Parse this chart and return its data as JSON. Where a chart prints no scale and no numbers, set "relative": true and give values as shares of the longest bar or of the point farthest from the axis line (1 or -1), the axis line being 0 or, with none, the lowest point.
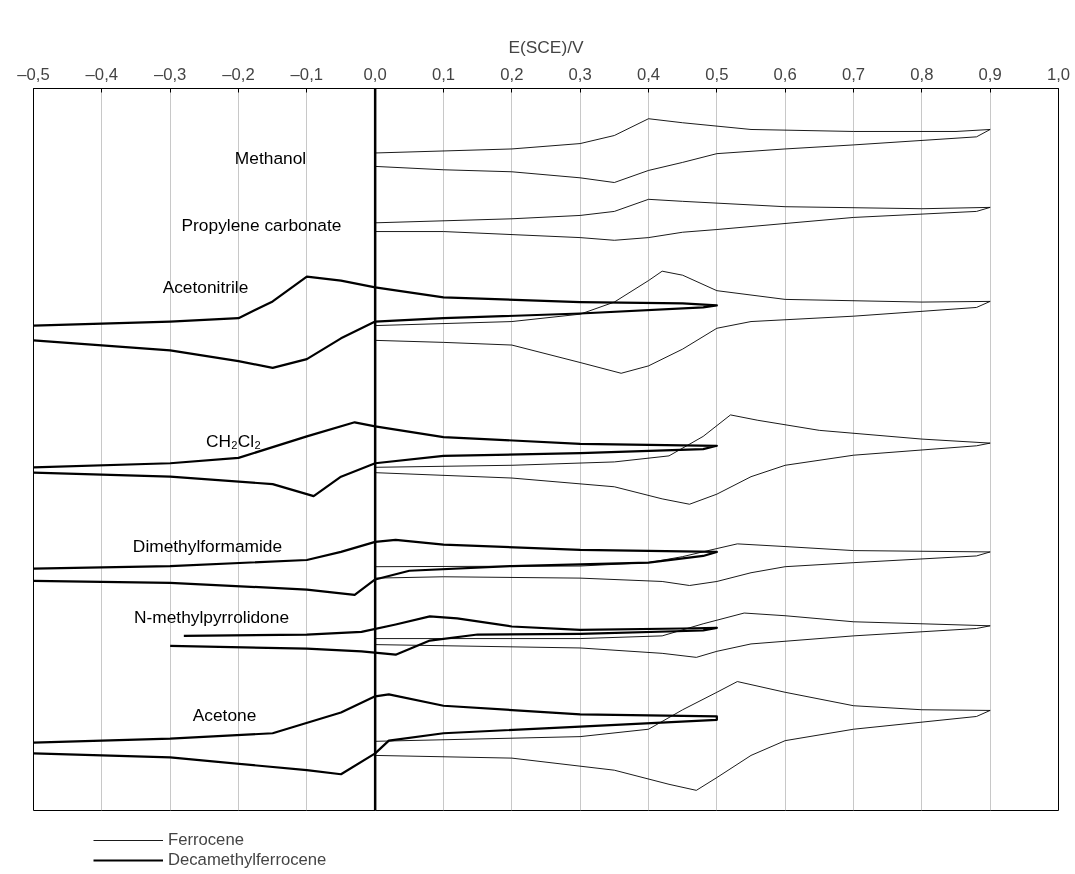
{
  "chart_data": {
    "type": "line",
    "relative": true,
    "xlabel": "E(SCE)/V",
    "xlim": [
      -0.5,
      1.0
    ],
    "xticks": [
      {
        "value": -0.5,
        "label": "–0,5"
      },
      {
        "value": -0.4,
        "label": "–0,4"
      },
      {
        "value": -0.3,
        "label": "–0,3"
      },
      {
        "value": -0.2,
        "label": "–0,2"
      },
      {
        "value": -0.1,
        "label": "–0,1"
      },
      {
        "value": 0.0,
        "label": "0,0"
      },
      {
        "value": 0.1,
        "label": "0,1"
      },
      {
        "value": 0.2,
        "label": "0,2"
      },
      {
        "value": 0.3,
        "label": "0,3"
      },
      {
        "value": 0.4,
        "label": "0,4"
      },
      {
        "value": 0.5,
        "label": "0,5"
      },
      {
        "value": 0.6,
        "label": "0,6"
      },
      {
        "value": 0.7,
        "label": "0,7"
      },
      {
        "value": 0.8,
        "label": "0,8"
      },
      {
        "value": 0.9,
        "label": "0,9"
      },
      {
        "value": 1.0,
        "label": "1,0"
      }
    ],
    "grid": "x",
    "legend": "bottom left",
    "marker": "none",
    "line_style": "solid",
    "ref_lines": [
      {
        "axis": "x",
        "value": 0.0,
        "label": null,
        "color": "#000000"
      }
    ],
    "series": [
      {
        "name": "Ferrocene",
        "color": "#000000",
        "x": [
          0,
          0.2,
          0.3,
          0.35,
          0.4,
          0.45,
          0.55,
          0.7,
          0.85,
          0.9,
          0.88,
          0.7,
          0.6,
          0.5,
          0.45,
          0.4,
          0.35,
          0.3,
          0.2,
          0.1,
          0,
          null,
          0,
          0.2,
          0.3,
          0.35,
          0.4,
          0.45,
          0.6,
          0.8,
          0.9,
          0.88,
          0.7,
          0.5,
          0.45,
          0.4,
          0.35,
          0.3,
          0.1,
          0,
          null,
          0,
          0.2,
          0.3,
          0.35,
          0.4,
          0.42,
          0.45,
          0.5,
          0.6,
          0.8,
          0.9,
          0.88,
          0.7,
          0.55,
          0.5,
          0.45,
          0.4,
          0.36,
          0.3,
          0.2,
          0.1,
          0,
          null,
          0,
          0.2,
          0.35,
          0.43,
          0.48,
          0.52,
          0.56,
          0.65,
          0.8,
          0.9,
          0.88,
          0.7,
          0.6,
          0.55,
          0.5,
          0.46,
          0.42,
          0.35,
          0.2,
          0,
          null,
          0,
          0.3,
          0.4,
          0.45,
          0.5,
          0.53,
          0.6,
          0.7,
          0.9,
          0.88,
          0.7,
          0.6,
          0.55,
          0.5,
          0.46,
          0.42,
          0.3,
          0.1,
          0,
          null,
          0,
          0.3,
          0.42,
          0.48,
          0.54,
          0.6,
          0.7,
          0.9,
          0.88,
          0.7,
          0.55,
          0.5,
          0.47,
          0.42,
          0.3,
          0,
          null,
          0,
          0.3,
          0.4,
          0.45,
          0.5,
          0.53,
          0.6,
          0.7,
          0.8,
          0.9,
          0.88,
          0.7,
          0.6,
          0.55,
          0.5,
          0.47,
          0.43,
          0.35,
          0.2,
          0
        ],
        "values": [
          0.949,
          0.955,
          0.963,
          0.975,
          1.0,
          0.994,
          0.984,
          0.981,
          0.981,
          0.984,
          0.973,
          0.961,
          0.955,
          0.948,
          0.935,
          0.923,
          0.905,
          0.912,
          0.921,
          0.924,
          0.929,
          null,
          0.845,
          0.851,
          0.856,
          0.862,
          0.88,
          0.877,
          0.869,
          0.866,
          0.868,
          0.862,
          0.853,
          0.835,
          0.831,
          0.823,
          0.819,
          0.823,
          0.832,
          0.832,
          null,
          0.692,
          0.698,
          0.709,
          0.727,
          0.759,
          0.773,
          0.767,
          0.744,
          0.731,
          0.727,
          0.728,
          0.719,
          0.706,
          0.698,
          0.688,
          0.657,
          0.632,
          0.621,
          0.637,
          0.663,
          0.667,
          0.67,
          null,
          0.481,
          0.484,
          0.489,
          0.498,
          0.527,
          0.559,
          0.551,
          0.536,
          0.523,
          0.517,
          0.513,
          0.499,
          0.484,
          0.467,
          0.441,
          0.426,
          0.434,
          0.452,
          0.465,
          0.473,
          null,
          0.333,
          0.334,
          0.339,
          0.348,
          0.36,
          0.367,
          0.363,
          0.357,
          0.355,
          0.349,
          0.339,
          0.333,
          0.324,
          0.311,
          0.305,
          0.311,
          0.316,
          0.318,
          0.316,
          null,
          0.226,
          0.226,
          0.23,
          0.248,
          0.264,
          0.26,
          0.251,
          0.245,
          0.241,
          0.23,
          0.218,
          0.207,
          0.198,
          0.204,
          0.212,
          0.217,
          null,
          0.073,
          0.08,
          0.091,
          0.12,
          0.146,
          0.162,
          0.146,
          0.126,
          0.12,
          0.119,
          0.11,
          0.091,
          0.074,
          0.052,
          0.019,
          0.0,
          0.009,
          0.03,
          0.048,
          0.052
        ]
      },
      {
        "name": "Decamethylferrocene",
        "color": "#000000",
        "x": [
          -0.5,
          -0.3,
          -0.2,
          -0.15,
          -0.1,
          -0.05,
          0,
          0.1,
          0.3,
          0.45,
          0.5,
          0.48,
          0.3,
          0.1,
          0,
          -0.05,
          -0.1,
          -0.15,
          -0.2,
          -0.3,
          -0.5,
          null,
          -0.5,
          -0.3,
          -0.2,
          -0.1,
          -0.03,
          0,
          0.1,
          0.3,
          0.5,
          0.48,
          0.3,
          0.1,
          0,
          -0.05,
          -0.09,
          -0.15,
          -0.3,
          -0.5,
          null,
          -0.5,
          -0.3,
          -0.1,
          -0.05,
          0,
          0.03,
          0.1,
          0.3,
          0.5,
          0.48,
          0.4,
          0.2,
          0.05,
          0,
          -0.03,
          -0.1,
          -0.3,
          -0.5,
          null,
          -0.28,
          -0.1,
          -0.02,
          0.03,
          0.08,
          0.12,
          0.2,
          0.3,
          0.45,
          0.5,
          0.48,
          0.3,
          0.15,
          0.08,
          0.03,
          -0.02,
          -0.1,
          -0.3,
          null,
          -0.5,
          -0.3,
          -0.15,
          -0.05,
          0,
          0.02,
          0.1,
          0.3,
          0.5,
          0.5,
          0.3,
          0.1,
          0.02,
          0,
          -0.05,
          -0.1,
          -0.3,
          -0.5
        ],
        "values": [
          0.692,
          0.698,
          0.703,
          0.728,
          0.765,
          0.759,
          0.749,
          0.734,
          0.727,
          0.725,
          0.722,
          0.719,
          0.71,
          0.703,
          0.698,
          0.673,
          0.642,
          0.629,
          0.639,
          0.655,
          0.67,
          null,
          0.481,
          0.487,
          0.495,
          0.527,
          0.548,
          0.542,
          0.526,
          0.516,
          0.513,
          0.508,
          0.502,
          0.498,
          0.487,
          0.467,
          0.438,
          0.456,
          0.467,
          0.473,
          null,
          0.33,
          0.334,
          0.343,
          0.355,
          0.37,
          0.373,
          0.366,
          0.358,
          0.355,
          0.349,
          0.339,
          0.334,
          0.327,
          0.314,
          0.291,
          0.299,
          0.309,
          0.312,
          null,
          0.23,
          0.232,
          0.236,
          0.247,
          0.259,
          0.256,
          0.244,
          0.239,
          0.241,
          0.242,
          0.238,
          0.233,
          0.232,
          0.223,
          0.202,
          0.207,
          0.211,
          0.215,
          null,
          0.071,
          0.077,
          0.085,
          0.116,
          0.14,
          0.143,
          0.126,
          0.113,
          0.11,
          0.105,
          0.095,
          0.085,
          0.074,
          0.055,
          0.024,
          0.03,
          0.049,
          0.055
        ]
      }
    ],
    "annotations": [
      "Methanol",
      "Propylene carbonate",
      "Acetonitrile",
      "CH₂Cl₂",
      "Dimethylformamide",
      "N-methylpyrrolidone",
      "Acetone"
    ]
  }
}
